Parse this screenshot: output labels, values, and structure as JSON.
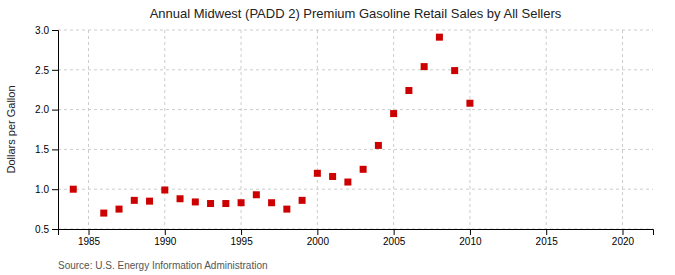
{
  "chart_data": {
    "type": "scatter",
    "title": "Annual Midwest (PADD 2) Premium Gasoline Retail Sales by All Sellers",
    "ylabel": "Dollars per Gallon",
    "source": "Source: U.S. Energy Information Administration",
    "x": [
      1984,
      1986,
      1987,
      1988,
      1989,
      1990,
      1991,
      1992,
      1993,
      1994,
      1995,
      1996,
      1997,
      1998,
      1999,
      2000,
      2001,
      2002,
      2003,
      2004,
      2005,
      2006,
      2007,
      2008,
      2009,
      2010
    ],
    "values": [
      1.0,
      0.7,
      0.75,
      0.86,
      0.85,
      0.99,
      0.88,
      0.84,
      0.82,
      0.82,
      0.83,
      0.93,
      0.83,
      0.75,
      0.86,
      1.2,
      1.16,
      1.09,
      1.25,
      1.55,
      1.95,
      2.24,
      2.54,
      2.91,
      2.49,
      2.08
    ],
    "color": "#cc0000",
    "marker": "square",
    "xlim": [
      1983,
      2022
    ],
    "ylim": [
      0.5,
      3.0
    ],
    "xticks": [
      1985,
      1990,
      1995,
      2000,
      2005,
      2010,
      2015,
      2020
    ],
    "yticks": [
      0.5,
      {
        "value": 1.0,
        "label": "1.0"
      },
      {
        "value": 1.5,
        "label": "1.5"
      },
      {
        "value": 2.0,
        "label": "2.0"
      },
      {
        "value": 2.5,
        "label": "2.5"
      },
      {
        "value": 3.0,
        "label": "3.0"
      }
    ],
    "grid": true
  }
}
